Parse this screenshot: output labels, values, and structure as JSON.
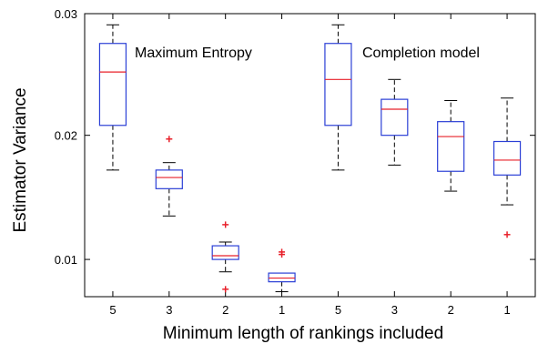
{
  "chart_data": {
    "type": "box",
    "title": "",
    "xlabel": "Minimum length of rankings included",
    "ylabel": "Estimator Variance",
    "ylim": [
      0.007,
      0.0298
    ],
    "y_ticks": [
      {
        "value": 0.01,
        "label": "0.01"
      },
      {
        "value": 0.02,
        "label": "0.02"
      },
      {
        "value": 0.0298,
        "label": "0.03"
      }
    ],
    "grid": false,
    "groups": [
      {
        "label": "Maximum Entropy"
      },
      {
        "label": "Completion model"
      }
    ],
    "boxes": [
      {
        "group": "Maximum Entropy",
        "category": "5",
        "whisker_low": 0.0172,
        "q1": 0.0208,
        "median": 0.0251,
        "q3": 0.0274,
        "whisker_high": 0.0289,
        "outliers": []
      },
      {
        "group": "Maximum Entropy",
        "category": "3",
        "whisker_low": 0.0135,
        "q1": 0.0157,
        "median": 0.0166,
        "q3": 0.0172,
        "whisker_high": 0.0178,
        "outliers": [
          0.0197
        ]
      },
      {
        "group": "Maximum Entropy",
        "category": "2",
        "whisker_low": 0.009,
        "q1": 0.01,
        "median": 0.0103,
        "q3": 0.0111,
        "whisker_high": 0.0114,
        "outliers": [
          0.0128,
          0.0076
        ]
      },
      {
        "group": "Maximum Entropy",
        "category": "1",
        "whisker_low": 0.0074,
        "q1": 0.0082,
        "median": 0.0085,
        "q3": 0.0089,
        "whisker_high": 0.0089,
        "outliers": [
          0.0106,
          0.0104
        ]
      },
      {
        "group": "Completion model",
        "category": "5",
        "whisker_low": 0.0172,
        "q1": 0.0208,
        "median": 0.0245,
        "q3": 0.0274,
        "whisker_high": 0.0289,
        "outliers": []
      },
      {
        "group": "Completion model",
        "category": "3",
        "whisker_low": 0.0176,
        "q1": 0.02,
        "median": 0.0221,
        "q3": 0.0229,
        "whisker_high": 0.0245,
        "outliers": []
      },
      {
        "group": "Completion model",
        "category": "2",
        "whisker_low": 0.0155,
        "q1": 0.0171,
        "median": 0.0199,
        "q3": 0.0211,
        "whisker_high": 0.0228,
        "outliers": []
      },
      {
        "group": "Completion model",
        "category": "1",
        "whisker_low": 0.0144,
        "q1": 0.0168,
        "median": 0.018,
        "q3": 0.0195,
        "whisker_high": 0.023,
        "outliers": [
          0.012
        ]
      }
    ],
    "colors": {
      "box": "#2b3fd6",
      "median": "#e8202a",
      "whisker": "#000000",
      "outlier": "#e8202a",
      "axes": "#000000"
    }
  }
}
